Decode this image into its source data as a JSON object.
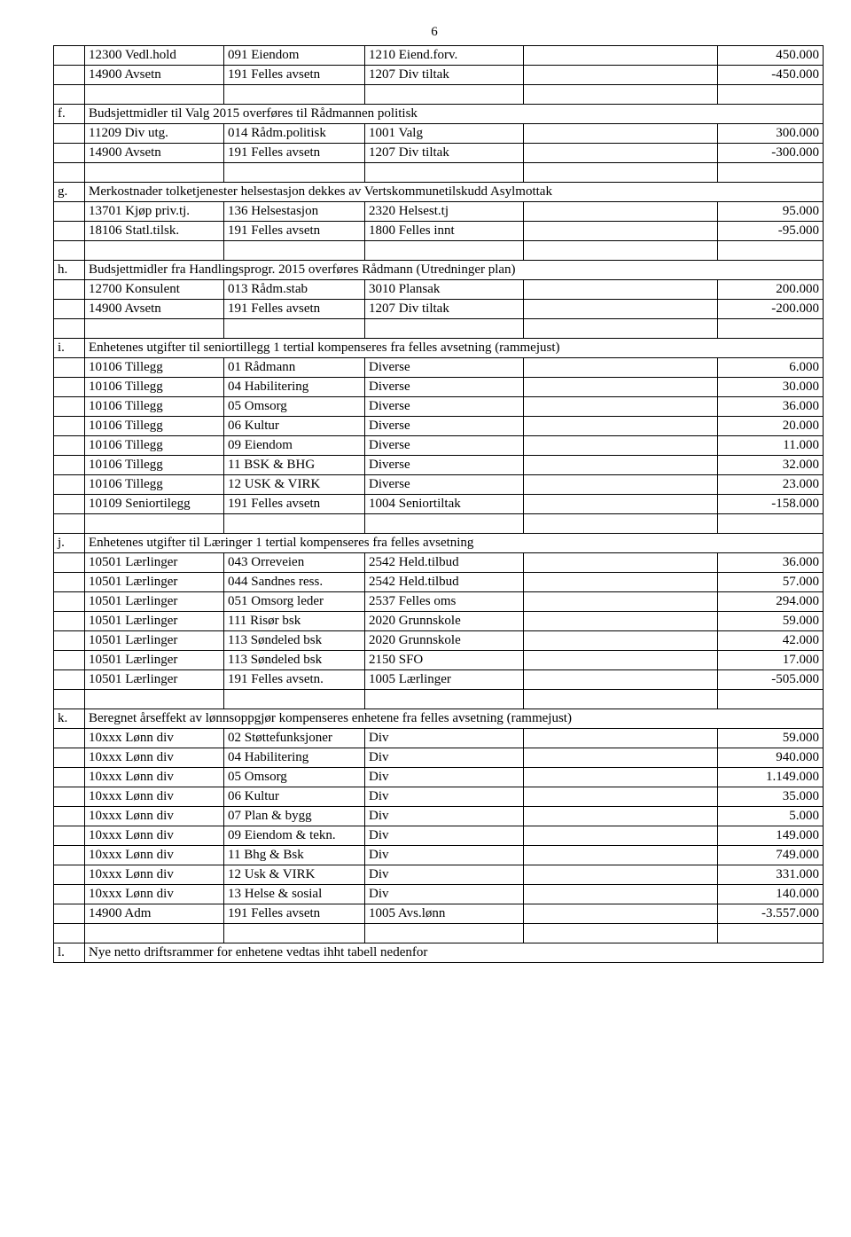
{
  "page_number": "6",
  "rows": [
    {
      "cells": [
        "",
        "12300 Vedl.hold",
        "091 Eiendom",
        "1210 Eiend.forv.",
        "",
        "450.000"
      ]
    },
    {
      "cells": [
        "",
        "14900 Avsetn",
        "191 Felles avsetn",
        "1207 Div tiltak",
        "",
        "-450.000"
      ]
    },
    {
      "cells": [
        "",
        "",
        "",
        "",
        "",
        ""
      ]
    },
    {
      "merge": "15",
      "c0": "f.",
      "text": "Budsjettmidler til Valg 2015 overføres til Rådmannen politisk"
    },
    {
      "cells": [
        "",
        "11209 Div utg.",
        "014 Rådm.politisk",
        "1001 Valg",
        "",
        "300.000"
      ]
    },
    {
      "cells": [
        "",
        "14900 Avsetn",
        "191 Felles avsetn",
        "1207 Div tiltak",
        "",
        "-300.000"
      ]
    },
    {
      "cells": [
        "",
        "",
        "",
        "",
        "",
        ""
      ]
    },
    {
      "merge": "15",
      "c0": "g.",
      "text": "Merkostnader tolketjenester helsestasjon dekkes av Vertskommunetilskudd Asylmottak"
    },
    {
      "cells": [
        "",
        "13701 Kjøp priv.tj.",
        "136 Helsestasjon",
        "2320 Helsest.tj",
        "",
        "95.000"
      ]
    },
    {
      "cells": [
        "",
        "18106 Statl.tilsk.",
        "191 Felles avsetn",
        "1800 Felles innt",
        "",
        "-95.000"
      ]
    },
    {
      "cells": [
        "",
        "",
        "",
        "",
        "",
        ""
      ]
    },
    {
      "merge": "15",
      "c0": "h.",
      "text": "Budsjettmidler fra Handlingsprogr. 2015 overføres Rådmann (Utredninger plan)"
    },
    {
      "cells": [
        "",
        "12700 Konsulent",
        "013 Rådm.stab",
        "3010 Plansak",
        "",
        "200.000"
      ]
    },
    {
      "cells": [
        "",
        "14900 Avsetn",
        "191 Felles avsetn",
        "1207 Div tiltak",
        "",
        "-200.000"
      ]
    },
    {
      "cells": [
        "",
        "",
        "",
        "",
        "",
        ""
      ]
    },
    {
      "merge": "15",
      "c0": "i.",
      "text": "Enhetenes utgifter til seniortillegg 1 tertial kompenseres fra felles avsetning (rammejust)"
    },
    {
      "cells": [
        "",
        "10106 Tillegg",
        "01 Rådmann",
        "Diverse",
        "",
        "6.000"
      ]
    },
    {
      "cells": [
        "",
        "10106 Tillegg",
        "04 Habilitering",
        "Diverse",
        "",
        "30.000"
      ]
    },
    {
      "cells": [
        "",
        "10106 Tillegg",
        "05 Omsorg",
        "Diverse",
        "",
        "36.000"
      ]
    },
    {
      "cells": [
        "",
        "10106 Tillegg",
        "06 Kultur",
        "Diverse",
        "",
        "20.000"
      ]
    },
    {
      "cells": [
        "",
        "10106 Tillegg",
        "09 Eiendom",
        "Diverse",
        "",
        "11.000"
      ]
    },
    {
      "cells": [
        "",
        "10106 Tillegg",
        "11 BSK & BHG",
        "Diverse",
        "",
        "32.000"
      ]
    },
    {
      "cells": [
        "",
        "10106 Tillegg",
        "12 USK & VIRK",
        "Diverse",
        "",
        "23.000"
      ]
    },
    {
      "cells": [
        "",
        "10109 Seniortilegg",
        "191 Felles avsetn",
        "1004 Seniortiltak",
        "",
        "-158.000"
      ]
    },
    {
      "cells": [
        "",
        "",
        "",
        "",
        "",
        ""
      ]
    },
    {
      "merge": "15",
      "c0": "j.",
      "text": "Enhetenes utgifter til Læringer 1 tertial kompenseres fra felles avsetning"
    },
    {
      "cells": [
        "",
        "10501 Lærlinger",
        "043 Orreveien",
        "2542 Held.tilbud",
        "",
        "36.000"
      ]
    },
    {
      "cells": [
        "",
        "10501 Lærlinger",
        "044 Sandnes ress.",
        "2542 Held.tilbud",
        "",
        "57.000"
      ]
    },
    {
      "cells": [
        "",
        "10501 Lærlinger",
        "051 Omsorg leder",
        "2537 Felles oms",
        "",
        "294.000"
      ]
    },
    {
      "cells": [
        "",
        "10501 Lærlinger",
        "111 Risør bsk",
        "2020 Grunnskole",
        "",
        "59.000"
      ]
    },
    {
      "cells": [
        "",
        "10501 Lærlinger",
        "113 Søndeled bsk",
        "2020 Grunnskole",
        "",
        "42.000"
      ]
    },
    {
      "cells": [
        "",
        "10501 Lærlinger",
        "113 Søndeled bsk",
        "2150 SFO",
        "",
        "17.000"
      ]
    },
    {
      "cells": [
        "",
        "10501 Lærlinger",
        "191 Felles avsetn.",
        "1005 Lærlinger",
        "",
        "-505.000"
      ]
    },
    {
      "cells": [
        "",
        "",
        "",
        "",
        "",
        ""
      ]
    },
    {
      "merge": "15",
      "c0": "k.",
      "text": "Beregnet årseffekt av lønnsoppgjør kompenseres enhetene fra felles avsetning (rammejust)"
    },
    {
      "cells": [
        "",
        "10xxx Lønn div",
        "02 Støttefunksjoner",
        "Div",
        "",
        "59.000"
      ]
    },
    {
      "cells": [
        "",
        "10xxx Lønn div",
        "04 Habilitering",
        "Div",
        "",
        "940.000"
      ]
    },
    {
      "cells": [
        "",
        "10xxx Lønn div",
        "05 Omsorg",
        "Div",
        "",
        "1.149.000"
      ]
    },
    {
      "cells": [
        "",
        "10xxx Lønn div",
        "06 Kultur",
        "Div",
        "",
        "35.000"
      ]
    },
    {
      "cells": [
        "",
        "10xxx Lønn div",
        "07 Plan & bygg",
        "Div",
        "",
        "5.000"
      ]
    },
    {
      "cells": [
        "",
        "10xxx Lønn div",
        "09 Eiendom & tekn.",
        "Div",
        "",
        "149.000"
      ]
    },
    {
      "cells": [
        "",
        "10xxx Lønn div",
        "11 Bhg & Bsk",
        "Div",
        "",
        "749.000"
      ]
    },
    {
      "cells": [
        "",
        "10xxx Lønn div",
        "12 Usk & VIRK",
        "Div",
        "",
        "331.000"
      ]
    },
    {
      "cells": [
        "",
        "10xxx Lønn div",
        "13 Helse & sosial",
        "Div",
        "",
        "140.000"
      ]
    },
    {
      "cells": [
        "",
        "14900 Adm",
        "191 Felles avsetn",
        "1005 Avs.lønn",
        "",
        "-3.557.000"
      ]
    },
    {
      "cells": [
        "",
        "",
        "",
        "",
        "",
        ""
      ]
    },
    {
      "merge": "15",
      "c0": "l.",
      "text": "Nye netto driftsrammer for enhetene vedtas ihht tabell nedenfor"
    }
  ]
}
